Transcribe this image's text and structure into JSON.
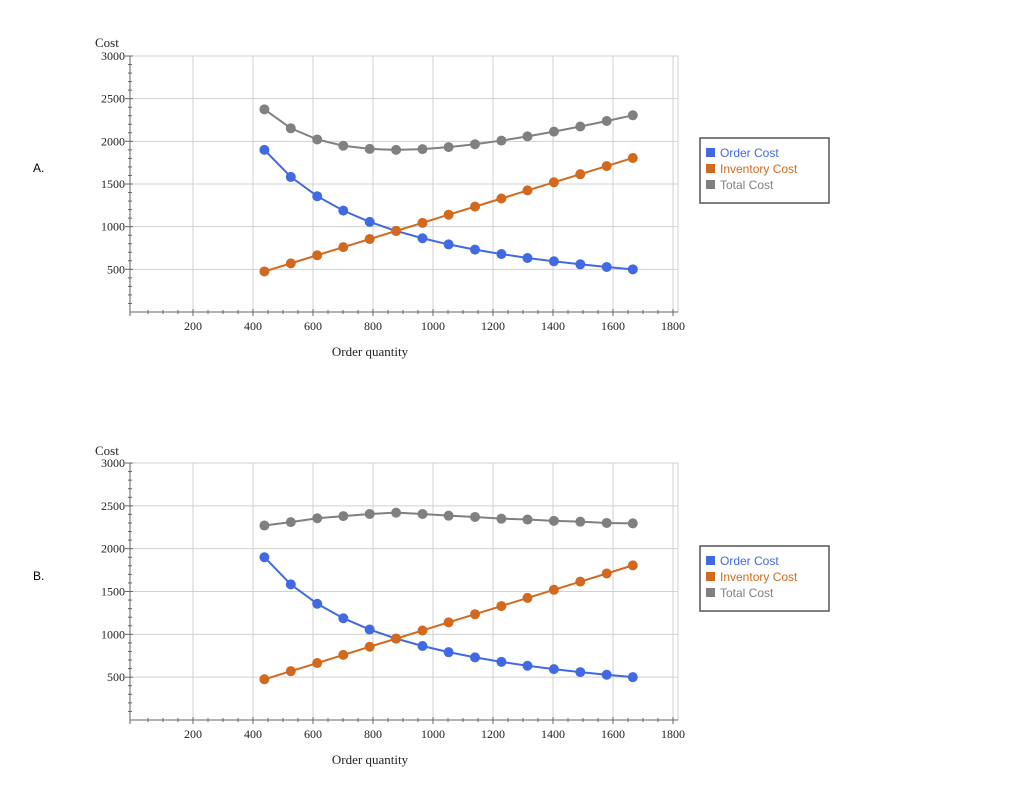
{
  "chart_data": [
    {
      "panel_label": "A.",
      "type": "line",
      "xlabel": "Order quantity",
      "ylabel": "Cost",
      "xlim": [
        0,
        1800
      ],
      "ylim": [
        0,
        3000
      ],
      "x_ticks": [
        200,
        400,
        600,
        800,
        1000,
        1200,
        1400,
        1600,
        1800
      ],
      "y_ticks": [
        500,
        1000,
        1500,
        2000,
        2500,
        3000
      ],
      "grid": true,
      "legend": "right",
      "x": [
        438,
        526,
        614,
        701,
        789,
        877,
        965,
        1052,
        1140,
        1228,
        1315,
        1403,
        1491,
        1579,
        1666
      ],
      "series": [
        {
          "name": "Order Cost",
          "color": "#4169e1",
          "values": [
            1900,
            1583,
            1357,
            1188,
            1056,
            950,
            864,
            792,
            731,
            679,
            633,
            594,
            559,
            528,
            500
          ]
        },
        {
          "name": "Inventory Cost",
          "color": "#d2691e",
          "values": [
            475,
            570,
            665,
            760,
            855,
            950,
            1045,
            1140,
            1235,
            1330,
            1425,
            1520,
            1615,
            1710,
            1805
          ]
        },
        {
          "name": "Total Cost",
          "color": "#808080",
          "values": [
            2375,
            2153,
            2022,
            1948,
            1911,
            1900,
            1909,
            1932,
            1966,
            2009,
            2058,
            2114,
            2174,
            2238,
            2305
          ]
        }
      ]
    },
    {
      "panel_label": "B.",
      "type": "line",
      "xlabel": "Order quantity",
      "ylabel": "Cost",
      "xlim": [
        0,
        1800
      ],
      "ylim": [
        0,
        3000
      ],
      "x_ticks": [
        200,
        400,
        600,
        800,
        1000,
        1200,
        1400,
        1600,
        1800
      ],
      "y_ticks": [
        500,
        1000,
        1500,
        2000,
        2500,
        3000
      ],
      "grid": true,
      "legend": "right",
      "x": [
        438,
        526,
        614,
        701,
        789,
        877,
        965,
        1052,
        1140,
        1228,
        1315,
        1403,
        1491,
        1579,
        1666
      ],
      "series": [
        {
          "name": "Order Cost",
          "color": "#4169e1",
          "values": [
            1900,
            1583,
            1357,
            1188,
            1056,
            950,
            864,
            792,
            731,
            679,
            633,
            594,
            559,
            528,
            500
          ]
        },
        {
          "name": "Inventory Cost",
          "color": "#d2691e",
          "values": [
            475,
            570,
            665,
            760,
            855,
            950,
            1045,
            1140,
            1235,
            1330,
            1425,
            1520,
            1615,
            1710,
            1805
          ]
        },
        {
          "name": "Total Cost",
          "color": "#808080",
          "values": [
            2270,
            2310,
            2355,
            2380,
            2405,
            2420,
            2405,
            2385,
            2370,
            2350,
            2340,
            2325,
            2315,
            2300,
            2295
          ]
        }
      ]
    }
  ]
}
